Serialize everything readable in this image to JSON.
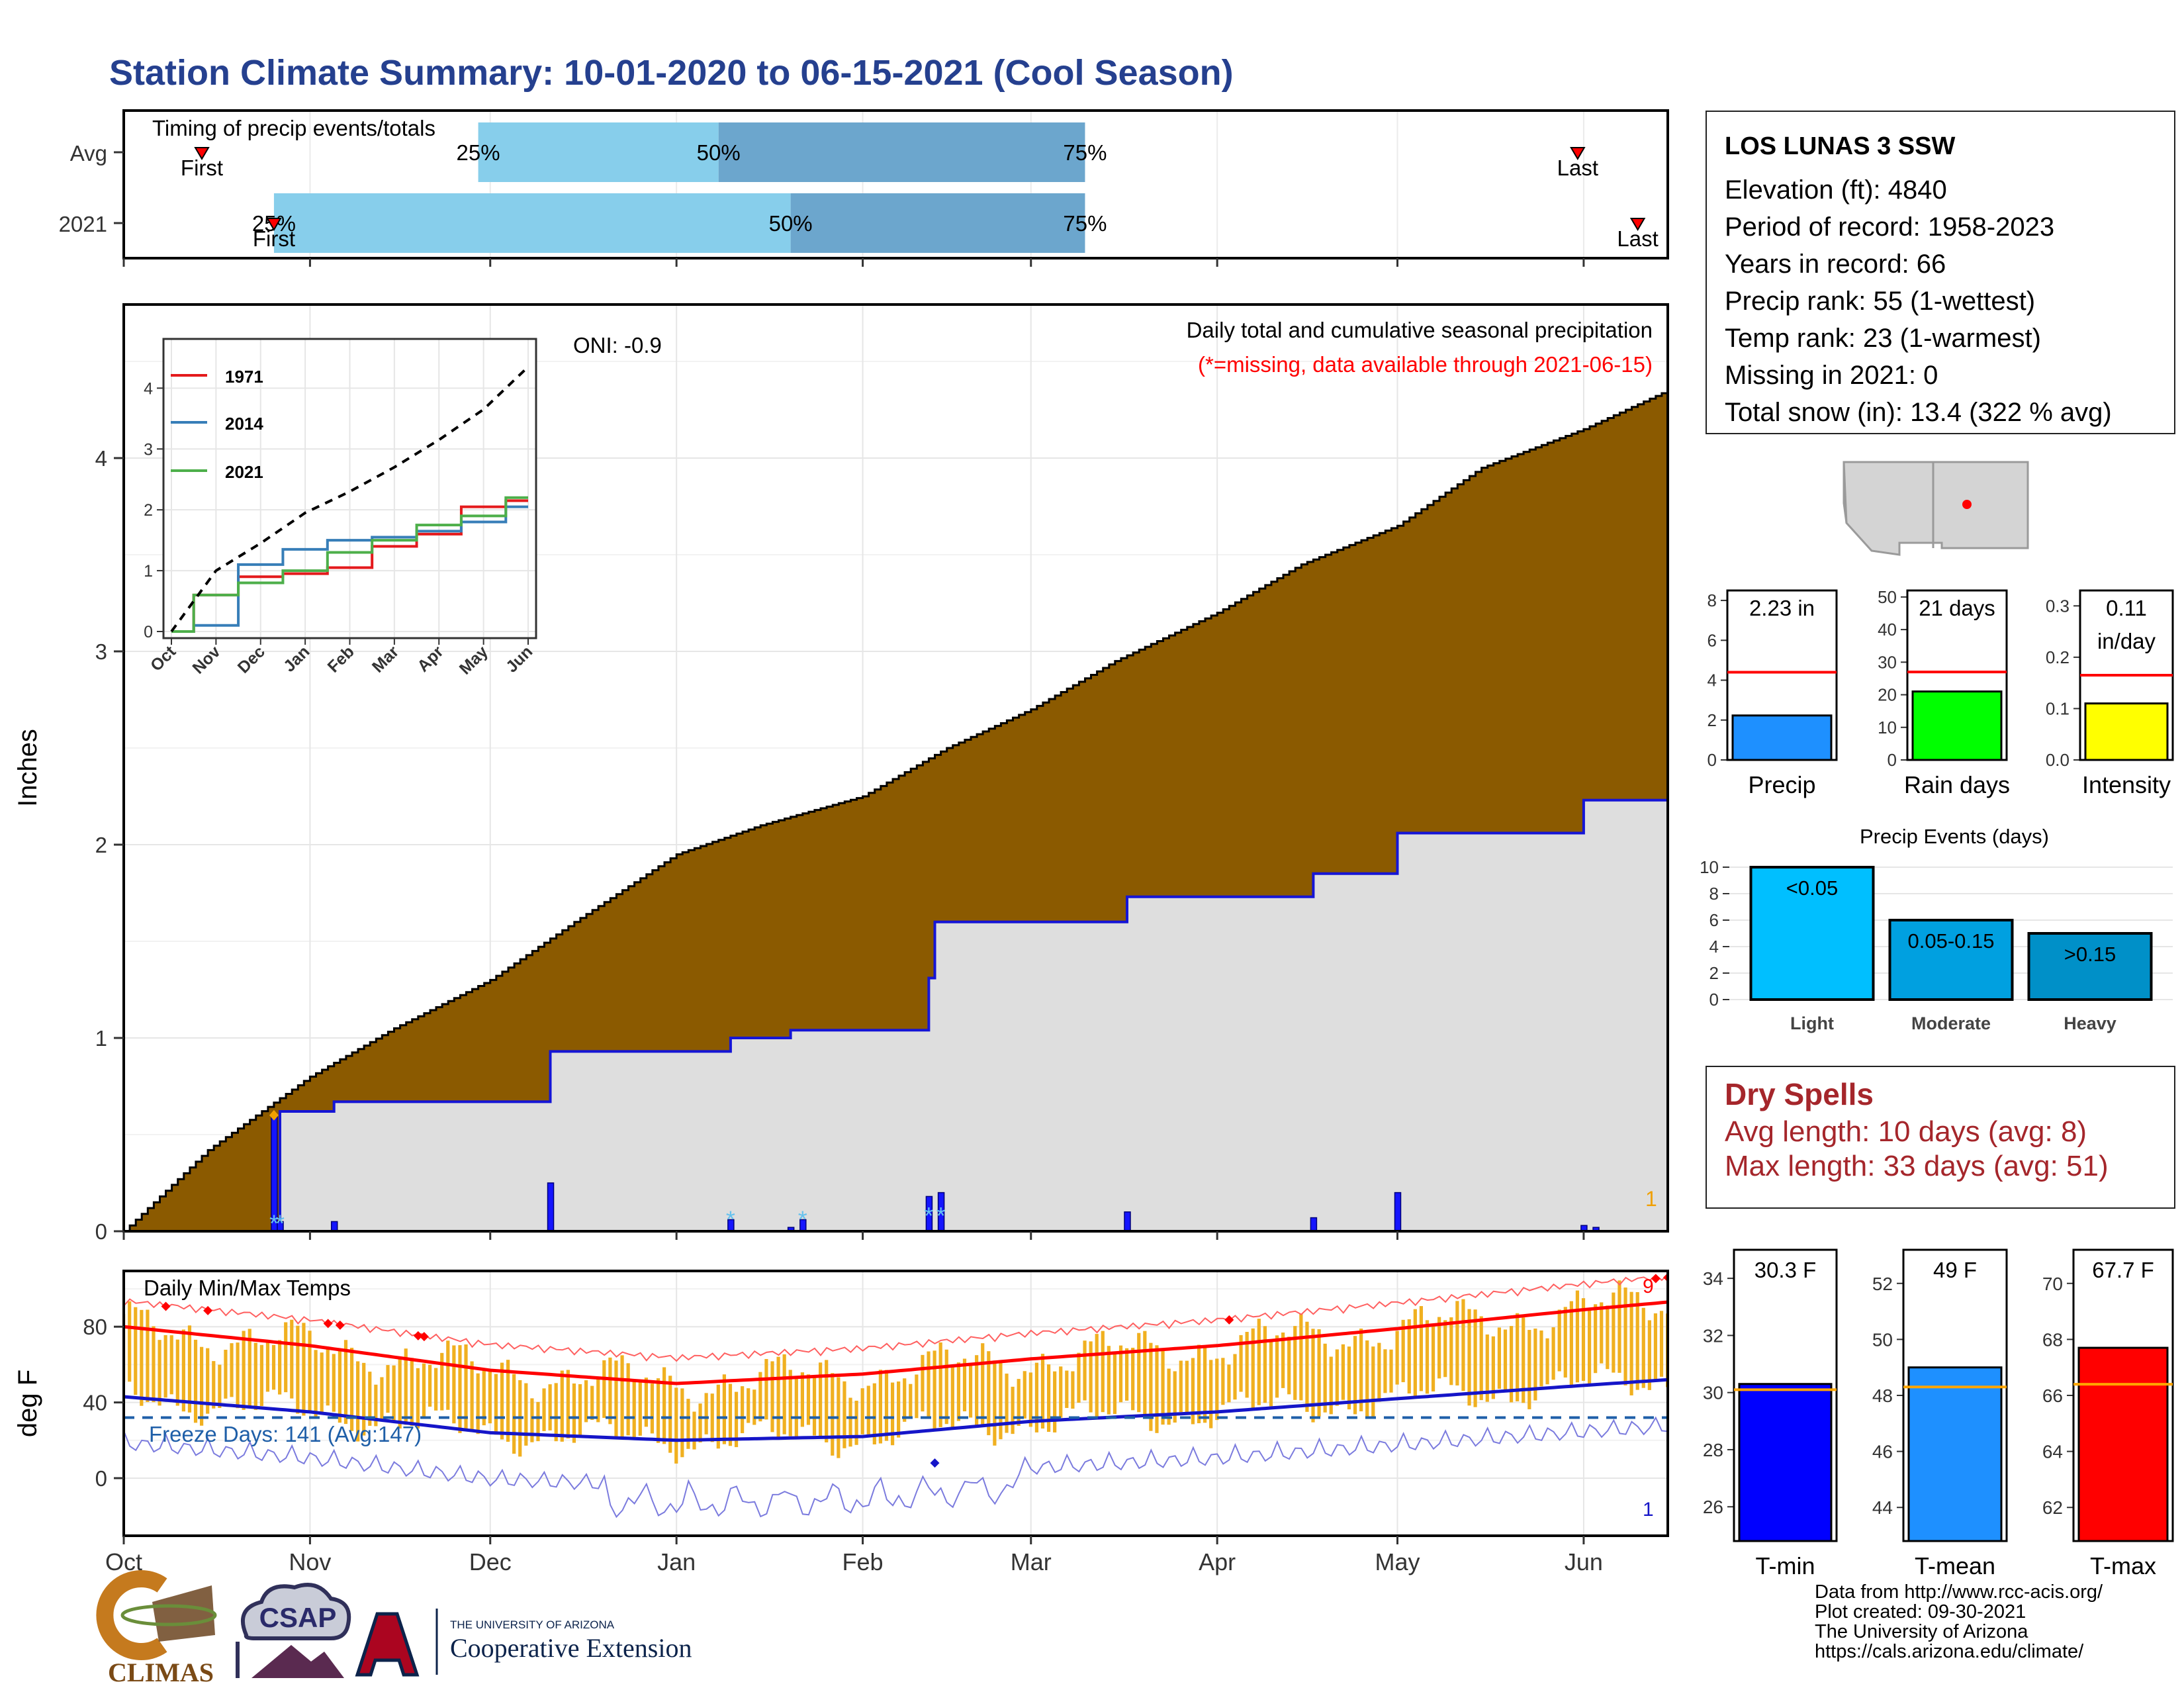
{
  "title": "Station Climate Summary: 10-01-2020 to 06-15-2021 (Cool Season)",
  "timing": {
    "label": "Timing of precip events/totals",
    "rows": [
      {
        "label": "Avg",
        "first": "First",
        "last": "Last",
        "p25": "25%",
        "p50": "50%",
        "p75": "75%"
      },
      {
        "label": "2021",
        "first": "First",
        "last": "Last",
        "p25": "25%",
        "p50": "50%",
        "p75": "75%"
      }
    ]
  },
  "precip_panel": {
    "ylabel": "Inches",
    "oni": "ONI: -0.9",
    "note": "Daily total and cumulative seasonal precipitation",
    "missing_note": "(*=missing, data available through 2021-06-15)",
    "count_label": "1",
    "yticks": [
      "0",
      "1",
      "2",
      "3",
      "4"
    ]
  },
  "inset": {
    "legend": [
      "1971",
      "2014",
      "2021"
    ],
    "xticks": [
      "Oct",
      "Nov",
      "Dec",
      "Jan",
      "Feb",
      "Mar",
      "Apr",
      "May",
      "Jun"
    ],
    "yticks": [
      "0",
      "1",
      "2",
      "3",
      "4"
    ]
  },
  "temp_panel": {
    "ylabel": "deg F",
    "label": "Daily Min/Max Temps",
    "freeze": "Freeze Days: 141 (Avg:147)",
    "max_count": "9",
    "min_count": "1",
    "yticks": [
      "0",
      "40",
      "80"
    ]
  },
  "xaxis": {
    "months": [
      "Oct",
      "Nov",
      "Dec",
      "Jan",
      "Feb",
      "Mar",
      "Apr",
      "May",
      "Jun"
    ]
  },
  "station": {
    "name": "LOS LUNAS 3 SSW",
    "lines": [
      "Elevation (ft): 4840",
      "Period of record: 1958-2023",
      "Years in record: 66",
      "Precip rank: 55 (1-wettest)",
      "Temp rank: 23 (1-warmest)",
      "Missing in 2021: 0",
      "Total snow (in): 13.4 (322 % avg)"
    ]
  },
  "mini_bars": [
    {
      "label": "Precip",
      "value_text": "2.23 in",
      "yticks": [
        "0",
        "2",
        "4",
        "6",
        "8"
      ]
    },
    {
      "label": "Rain days",
      "value_text": "21 days",
      "yticks": [
        "0",
        "10",
        "20",
        "30",
        "40",
        "50"
      ]
    },
    {
      "label": "Intensity",
      "value_text": "0.11",
      "value_text2": "in/day",
      "yticks": [
        "0.0",
        "0.1",
        "0.2",
        "0.3"
      ]
    }
  ],
  "precip_events": {
    "title": "Precip Events (days)",
    "yticks": [
      "0",
      "2",
      "4",
      "6",
      "8",
      "10"
    ],
    "bars": [
      {
        "label": "Light",
        "inner": "<0.05"
      },
      {
        "label": "Moderate",
        "inner": "0.05-0.15"
      },
      {
        "label": "Heavy",
        "inner": ">0.15"
      }
    ]
  },
  "dry_spells": {
    "title": "Dry Spells",
    "avg": "Avg length: 10 days (avg: 8)",
    "max": "Max length: 33 days (avg: 51)"
  },
  "temp_bars": [
    {
      "label": "T-min",
      "value_text": "30.3 F",
      "yticks": [
        "26",
        "28",
        "30",
        "32",
        "34"
      ]
    },
    {
      "label": "T-mean",
      "value_text": "49 F",
      "yticks": [
        "44",
        "46",
        "48",
        "50",
        "52"
      ]
    },
    {
      "label": "T-max",
      "value_text": "67.7 F",
      "yticks": [
        "62",
        "64",
        "66",
        "68",
        "70"
      ]
    }
  ],
  "logos": {
    "climas": "CLIMAS",
    "csap": "CSAP",
    "ua_line1": "THE UNIVERSITY OF ARIZONA",
    "ua_line2": "Cooperative Extension"
  },
  "footer": [
    "Data from http://www.rcc-acis.org/",
    "Plot created: 09-30-2021",
    "The University of Arizona",
    "https://cals.arizona.edu/climate/"
  ],
  "chart_data": [
    {
      "type": "bar",
      "name": "timing",
      "categories": [
        "Avg",
        "2021"
      ],
      "series": [
        {
          "name": "Avg",
          "first": "2020-10-14",
          "p25": "2020-11-29",
          "p50": "2021-01-08",
          "p75": "2021-03-10",
          "last": "2021-05-31"
        },
        {
          "name": "2021",
          "first": "2020-10-26",
          "p25": "2020-10-26",
          "p50": "2021-01-20",
          "p75": "2021-03-10",
          "last": "2021-06-10"
        }
      ]
    },
    {
      "type": "area",
      "name": "cumulative seasonal precipitation",
      "ylabel": "Inches",
      "ylim": [
        0,
        4.75
      ],
      "avg_cumulative": {
        "x": [
          "2020-10-01",
          "2020-10-15",
          "2020-11-01",
          "2020-11-15",
          "2020-12-01",
          "2020-12-15",
          "2021-01-01",
          "2021-01-15",
          "2021-02-01",
          "2021-02-15",
          "2021-03-01",
          "2021-03-15",
          "2021-04-01",
          "2021-04-15",
          "2021-05-01",
          "2021-05-15",
          "2021-06-01",
          "2021-06-15"
        ],
        "y": [
          0.0,
          0.42,
          0.8,
          1.05,
          1.3,
          1.6,
          1.95,
          2.1,
          2.25,
          2.5,
          2.7,
          2.95,
          3.2,
          3.45,
          3.65,
          3.95,
          4.15,
          4.35
        ]
      },
      "cumulative_2021": {
        "x": [
          "2020-10-01",
          "2020-10-26",
          "2020-10-27",
          "2020-11-05",
          "2020-12-11",
          "2021-01-10",
          "2021-01-20",
          "2021-02-12",
          "2021-02-13",
          "2021-03-17",
          "2021-04-01",
          "2021-04-17",
          "2021-05-01",
          "2021-05-31",
          "2021-06-01",
          "2021-06-15"
        ],
        "y": [
          0.0,
          0.0,
          0.62,
          0.67,
          0.93,
          1.0,
          1.04,
          1.31,
          1.6,
          1.73,
          1.73,
          1.85,
          2.06,
          2.06,
          2.23,
          2.23
        ]
      },
      "daily_2021": {
        "x": [
          "2020-10-26",
          "2020-10-27",
          "2020-11-05",
          "2020-12-11",
          "2021-01-10",
          "2021-01-20",
          "2021-01-22",
          "2021-02-12",
          "2021-02-14",
          "2021-03-17",
          "2021-04-17",
          "2021-05-01",
          "2021-06-01",
          "2021-06-03"
        ],
        "y": [
          0.6,
          0.05,
          0.05,
          0.25,
          0.06,
          0.02,
          0.06,
          0.18,
          0.2,
          0.1,
          0.07,
          0.2,
          0.03,
          0.02
        ]
      }
    },
    {
      "type": "line",
      "name": "inset cumulative precipitation",
      "categories": [
        "Oct",
        "Nov",
        "Dec",
        "Jan",
        "Feb",
        "Mar",
        "Apr",
        "May",
        "Jun"
      ],
      "ylim": [
        0,
        4.5
      ],
      "series": [
        {
          "name": "1971",
          "values": [
            0.0,
            0.6,
            0.9,
            0.95,
            1.05,
            1.4,
            1.6,
            2.05,
            2.15
          ]
        },
        {
          "name": "2014",
          "values": [
            0.0,
            0.1,
            1.1,
            1.35,
            1.5,
            1.55,
            1.65,
            1.8,
            2.05
          ]
        },
        {
          "name": "2021",
          "values": [
            0.0,
            0.6,
            0.8,
            1.0,
            1.3,
            1.5,
            1.75,
            1.9,
            2.2
          ]
        },
        {
          "values": [
            0.0,
            1.0,
            1.45,
            1.95,
            2.3,
            2.7,
            3.15,
            3.65,
            4.35
          ]
        }
      ]
    },
    {
      "type": "bar",
      "name": "daily min/max temps",
      "ylabel": "deg F",
      "ylim": [
        -25,
        110
      ],
      "x": [
        "2020-10-01",
        "2020-11-01",
        "2020-12-01",
        "2021-01-01",
        "2021-02-01",
        "2021-03-01",
        "2021-04-01",
        "2021-05-01",
        "2021-06-01",
        "2021-06-15"
      ],
      "series": [
        {
          "name": "avg max",
          "values": [
            80,
            70,
            57,
            50,
            55,
            63,
            70,
            79,
            89,
            93
          ]
        },
        {
          "name": "avg min",
          "values": [
            43,
            35,
            24,
            20,
            22,
            30,
            35,
            42,
            49,
            52
          ]
        },
        {
          "name": "freeze threshold",
          "values": [
            32,
            32,
            32,
            32,
            32,
            32,
            32,
            32,
            32,
            32
          ]
        }
      ]
    },
    {
      "type": "bar",
      "name": "season totals",
      "categories": [
        "Precip",
        "Rain days",
        "Intensity"
      ],
      "values": [
        2.23,
        21,
        0.11
      ],
      "averages": [
        4.4,
        27,
        0.165
      ]
    },
    {
      "type": "bar",
      "name": "precip events",
      "title": "Precip Events (days)",
      "categories": [
        "Light",
        "Moderate",
        "Heavy"
      ],
      "values": [
        10,
        6,
        5
      ],
      "ylim": [
        0,
        10.5
      ]
    },
    {
      "type": "bar",
      "name": "seasonal temperatures",
      "categories": [
        "T-min",
        "T-mean",
        "T-max"
      ],
      "values": [
        30.3,
        49,
        67.7
      ],
      "averages": [
        30.1,
        48.3,
        66.4
      ]
    }
  ]
}
